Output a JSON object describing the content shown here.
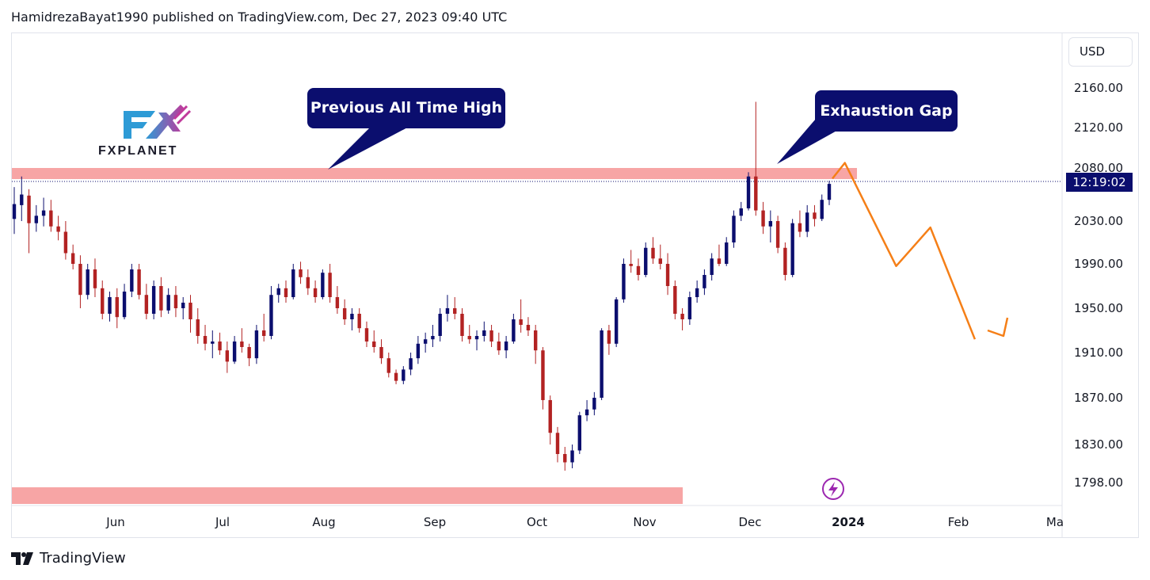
{
  "header": {
    "publish_line": "HamidrezaBayat1990 published on TradingView.com, Dec 27, 2023 09:40 UTC"
  },
  "currency_button": "USD",
  "countdown": "12:19:02",
  "callouts": {
    "ath": "Previous All Time High",
    "gap": "Exhaustion Gap"
  },
  "logo": {
    "text": "FXPLANET"
  },
  "footer": {
    "brand": "TradingView"
  },
  "colors": {
    "up": "#0b0e6e",
    "down": "#b22222",
    "zone": "#f7a5a5",
    "projection": "#f57f17",
    "flash": "#9c27b0"
  },
  "chart_data": {
    "type": "candlestick",
    "y_ticks": [
      "2160.00",
      "2120.00",
      "2080.00",
      "2030.00",
      "1990.00",
      "1950.00",
      "1910.00",
      "1870.00",
      "1830.00",
      "1798.00"
    ],
    "x_ticks": [
      "Jun",
      "Jul",
      "Aug",
      "Sep",
      "Oct",
      "Nov",
      "Dec",
      "2024",
      "Feb",
      "Ma"
    ],
    "last_price": 2067,
    "resistance_zone": [
      2066,
      2076
    ],
    "support_zone_visible": true,
    "candles": [
      {
        "o": 2032,
        "h": 2062,
        "l": 2018,
        "c": 2046
      },
      {
        "o": 2045,
        "h": 2072,
        "l": 2030,
        "c": 2055
      },
      {
        "o": 2054,
        "h": 2060,
        "l": 2000,
        "c": 2028
      },
      {
        "o": 2028,
        "h": 2045,
        "l": 2020,
        "c": 2035
      },
      {
        "o": 2035,
        "h": 2052,
        "l": 2025,
        "c": 2040
      },
      {
        "o": 2040,
        "h": 2050,
        "l": 2020,
        "c": 2025
      },
      {
        "o": 2025,
        "h": 2035,
        "l": 2012,
        "c": 2020
      },
      {
        "o": 2020,
        "h": 2030,
        "l": 1994,
        "c": 2000
      },
      {
        "o": 2000,
        "h": 2008,
        "l": 1985,
        "c": 1990
      },
      {
        "o": 1990,
        "h": 1998,
        "l": 1950,
        "c": 1962
      },
      {
        "o": 1962,
        "h": 1990,
        "l": 1958,
        "c": 1985
      },
      {
        "o": 1985,
        "h": 1995,
        "l": 1960,
        "c": 1968
      },
      {
        "o": 1968,
        "h": 1975,
        "l": 1940,
        "c": 1945
      },
      {
        "o": 1945,
        "h": 1965,
        "l": 1938,
        "c": 1960
      },
      {
        "o": 1960,
        "h": 1968,
        "l": 1932,
        "c": 1942
      },
      {
        "o": 1942,
        "h": 1972,
        "l": 1940,
        "c": 1965
      },
      {
        "o": 1965,
        "h": 1990,
        "l": 1960,
        "c": 1985
      },
      {
        "o": 1985,
        "h": 1990,
        "l": 1958,
        "c": 1962
      },
      {
        "o": 1962,
        "h": 1972,
        "l": 1940,
        "c": 1945
      },
      {
        "o": 1945,
        "h": 1975,
        "l": 1940,
        "c": 1970
      },
      {
        "o": 1970,
        "h": 1978,
        "l": 1942,
        "c": 1948
      },
      {
        "o": 1948,
        "h": 1968,
        "l": 1945,
        "c": 1962
      },
      {
        "o": 1962,
        "h": 1970,
        "l": 1942,
        "c": 1950
      },
      {
        "o": 1950,
        "h": 1960,
        "l": 1940,
        "c": 1955
      },
      {
        "o": 1955,
        "h": 1962,
        "l": 1928,
        "c": 1940
      },
      {
        "o": 1940,
        "h": 1950,
        "l": 1918,
        "c": 1925
      },
      {
        "o": 1925,
        "h": 1935,
        "l": 1912,
        "c": 1918
      },
      {
        "o": 1918,
        "h": 1930,
        "l": 1905,
        "c": 1920
      },
      {
        "o": 1920,
        "h": 1928,
        "l": 1908,
        "c": 1912
      },
      {
        "o": 1912,
        "h": 1920,
        "l": 1892,
        "c": 1902
      },
      {
        "o": 1902,
        "h": 1925,
        "l": 1900,
        "c": 1920
      },
      {
        "o": 1920,
        "h": 1932,
        "l": 1910,
        "c": 1915
      },
      {
        "o": 1915,
        "h": 1918,
        "l": 1898,
        "c": 1905
      },
      {
        "o": 1905,
        "h": 1935,
        "l": 1900,
        "c": 1930
      },
      {
        "o": 1930,
        "h": 1945,
        "l": 1920,
        "c": 1925
      },
      {
        "o": 1925,
        "h": 1970,
        "l": 1922,
        "c": 1962
      },
      {
        "o": 1962,
        "h": 1972,
        "l": 1955,
        "c": 1968
      },
      {
        "o": 1968,
        "h": 1975,
        "l": 1955,
        "c": 1960
      },
      {
        "o": 1960,
        "h": 1990,
        "l": 1958,
        "c": 1985
      },
      {
        "o": 1985,
        "h": 1992,
        "l": 1972,
        "c": 1978
      },
      {
        "o": 1978,
        "h": 1985,
        "l": 1962,
        "c": 1968
      },
      {
        "o": 1968,
        "h": 1975,
        "l": 1955,
        "c": 1960
      },
      {
        "o": 1960,
        "h": 1985,
        "l": 1958,
        "c": 1982
      },
      {
        "o": 1982,
        "h": 1990,
        "l": 1955,
        "c": 1960
      },
      {
        "o": 1960,
        "h": 1970,
        "l": 1945,
        "c": 1950
      },
      {
        "o": 1950,
        "h": 1958,
        "l": 1935,
        "c": 1940
      },
      {
        "o": 1940,
        "h": 1950,
        "l": 1930,
        "c": 1945
      },
      {
        "o": 1945,
        "h": 1950,
        "l": 1928,
        "c": 1932
      },
      {
        "o": 1932,
        "h": 1938,
        "l": 1915,
        "c": 1920
      },
      {
        "o": 1920,
        "h": 1930,
        "l": 1910,
        "c": 1915
      },
      {
        "o": 1915,
        "h": 1922,
        "l": 1900,
        "c": 1905
      },
      {
        "o": 1905,
        "h": 1910,
        "l": 1888,
        "c": 1892
      },
      {
        "o": 1892,
        "h": 1895,
        "l": 1882,
        "c": 1885
      },
      {
        "o": 1885,
        "h": 1898,
        "l": 1882,
        "c": 1895
      },
      {
        "o": 1895,
        "h": 1910,
        "l": 1890,
        "c": 1905
      },
      {
        "o": 1905,
        "h": 1925,
        "l": 1900,
        "c": 1918
      },
      {
        "o": 1918,
        "h": 1928,
        "l": 1910,
        "c": 1922
      },
      {
        "o": 1922,
        "h": 1935,
        "l": 1915,
        "c": 1925
      },
      {
        "o": 1925,
        "h": 1950,
        "l": 1920,
        "c": 1945
      },
      {
        "o": 1945,
        "h": 1962,
        "l": 1938,
        "c": 1950
      },
      {
        "o": 1950,
        "h": 1960,
        "l": 1940,
        "c": 1945
      },
      {
        "o": 1945,
        "h": 1950,
        "l": 1920,
        "c": 1925
      },
      {
        "o": 1925,
        "h": 1935,
        "l": 1918,
        "c": 1922
      },
      {
        "o": 1922,
        "h": 1930,
        "l": 1912,
        "c": 1925
      },
      {
        "o": 1925,
        "h": 1938,
        "l": 1920,
        "c": 1930
      },
      {
        "o": 1930,
        "h": 1935,
        "l": 1915,
        "c": 1920
      },
      {
        "o": 1920,
        "h": 1928,
        "l": 1908,
        "c": 1912
      },
      {
        "o": 1912,
        "h": 1925,
        "l": 1905,
        "c": 1920
      },
      {
        "o": 1920,
        "h": 1945,
        "l": 1918,
        "c": 1940
      },
      {
        "o": 1940,
        "h": 1958,
        "l": 1928,
        "c": 1935
      },
      {
        "o": 1935,
        "h": 1942,
        "l": 1925,
        "c": 1930
      },
      {
        "o": 1930,
        "h": 1935,
        "l": 1900,
        "c": 1912
      },
      {
        "o": 1912,
        "h": 1915,
        "l": 1860,
        "c": 1868
      },
      {
        "o": 1868,
        "h": 1872,
        "l": 1830,
        "c": 1840
      },
      {
        "o": 1840,
        "h": 1845,
        "l": 1815,
        "c": 1822
      },
      {
        "o": 1822,
        "h": 1828,
        "l": 1808,
        "c": 1815
      },
      {
        "o": 1815,
        "h": 1830,
        "l": 1810,
        "c": 1825
      },
      {
        "o": 1825,
        "h": 1858,
        "l": 1822,
        "c": 1855
      },
      {
        "o": 1855,
        "h": 1868,
        "l": 1850,
        "c": 1860
      },
      {
        "o": 1860,
        "h": 1875,
        "l": 1855,
        "c": 1870
      },
      {
        "o": 1870,
        "h": 1932,
        "l": 1868,
        "c": 1930
      },
      {
        "o": 1930,
        "h": 1935,
        "l": 1908,
        "c": 1918
      },
      {
        "o": 1918,
        "h": 1960,
        "l": 1915,
        "c": 1958
      },
      {
        "o": 1958,
        "h": 1995,
        "l": 1955,
        "c": 1990
      },
      {
        "o": 1990,
        "h": 2003,
        "l": 1982,
        "c": 1988
      },
      {
        "o": 1988,
        "h": 1995,
        "l": 1975,
        "c": 1980
      },
      {
        "o": 1980,
        "h": 2010,
        "l": 1978,
        "c": 2005
      },
      {
        "o": 2005,
        "h": 2015,
        "l": 1990,
        "c": 1995
      },
      {
        "o": 1995,
        "h": 2008,
        "l": 1985,
        "c": 1990
      },
      {
        "o": 1990,
        "h": 2000,
        "l": 1962,
        "c": 1970
      },
      {
        "o": 1970,
        "h": 1975,
        "l": 1940,
        "c": 1945
      },
      {
        "o": 1945,
        "h": 1950,
        "l": 1930,
        "c": 1940
      },
      {
        "o": 1940,
        "h": 1965,
        "l": 1935,
        "c": 1960
      },
      {
        "o": 1960,
        "h": 1975,
        "l": 1955,
        "c": 1968
      },
      {
        "o": 1968,
        "h": 1985,
        "l": 1962,
        "c": 1980
      },
      {
        "o": 1980,
        "h": 2000,
        "l": 1975,
        "c": 1995
      },
      {
        "o": 1995,
        "h": 2008,
        "l": 1988,
        "c": 1990
      },
      {
        "o": 1990,
        "h": 2015,
        "l": 1988,
        "c": 2010
      },
      {
        "o": 2010,
        "h": 2040,
        "l": 2005,
        "c": 2035
      },
      {
        "o": 2035,
        "h": 2048,
        "l": 2030,
        "c": 2042
      },
      {
        "o": 2042,
        "h": 2076,
        "l": 2040,
        "c": 2072
      },
      {
        "o": 2072,
        "h": 2146,
        "l": 2035,
        "c": 2040
      },
      {
        "o": 2040,
        "h": 2048,
        "l": 2018,
        "c": 2025
      },
      {
        "o": 2025,
        "h": 2040,
        "l": 2010,
        "c": 2030
      },
      {
        "o": 2030,
        "h": 2035,
        "l": 2000,
        "c": 2005
      },
      {
        "o": 2005,
        "h": 2010,
        "l": 1975,
        "c": 1980
      },
      {
        "o": 1980,
        "h": 2032,
        "l": 1978,
        "c": 2028
      },
      {
        "o": 2028,
        "h": 2040,
        "l": 2015,
        "c": 2020
      },
      {
        "o": 2020,
        "h": 2045,
        "l": 2015,
        "c": 2038
      },
      {
        "o": 2038,
        "h": 2045,
        "l": 2025,
        "c": 2032
      },
      {
        "o": 2032,
        "h": 2055,
        "l": 2030,
        "c": 2050
      },
      {
        "o": 2050,
        "h": 2068,
        "l": 2045,
        "c": 2065
      }
    ],
    "projection": [
      {
        "x": "2023-12-31",
        "y": 2085
      },
      {
        "x": "2024-01-15",
        "y": 1988
      },
      {
        "x": "2024-01-25",
        "y": 2024
      },
      {
        "x": "2024-02-07",
        "y": 1922
      }
    ]
  }
}
